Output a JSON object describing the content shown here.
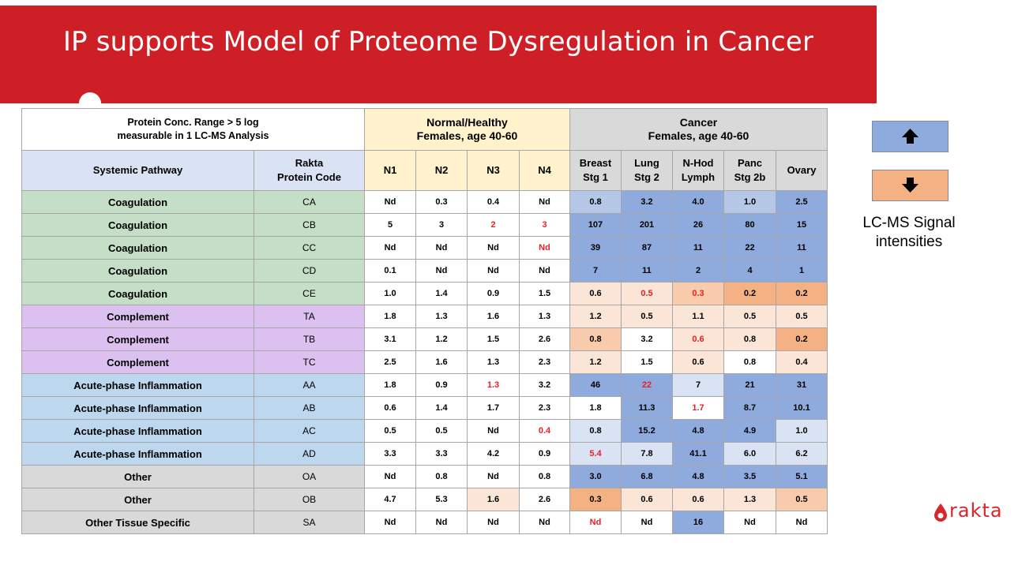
{
  "title": "IP supports Model of Proteome Dysregulation in Cancer",
  "table": {
    "note_line1": "Protein Conc. Range > 5 log",
    "note_line2": "measurable in 1 LC-MS Analysis",
    "normal_group_line1": "Normal/Healthy",
    "normal_group_line2": "Females, age 40-60",
    "cancer_group_line1": "Cancer",
    "cancer_group_line2": "Females, age 40-60",
    "col_pathway": "Systemic Pathway",
    "col_code_line1": "Rakta",
    "col_code_line2": "Protein Code",
    "normal_cols": [
      "N1",
      "N2",
      "N3",
      "N4"
    ],
    "cancer_cols": [
      {
        "l1": "Breast",
        "l2": "Stg 1"
      },
      {
        "l1": "Lung",
        "l2": "Stg 2"
      },
      {
        "l1": "N-Hod",
        "l2": "Lymph"
      },
      {
        "l1": "Panc",
        "l2": "Stg 2b"
      },
      {
        "l1": "Ovary",
        "l2": ""
      }
    ],
    "rows": [
      {
        "pathway": "Coagulation",
        "code": "CA",
        "normal": [
          "Nd",
          "0.3",
          "0.4",
          "Nd"
        ],
        "cancer": [
          "0.8",
          "3.2",
          "4.0",
          "1.0",
          "2.5"
        ]
      },
      {
        "pathway": "Coagulation",
        "code": "CB",
        "normal": [
          "5",
          "3",
          "2",
          "3"
        ],
        "cancer": [
          "107",
          "201",
          "26",
          "80",
          "15"
        ]
      },
      {
        "pathway": "Coagulation",
        "code": "CC",
        "normal": [
          "Nd",
          "Nd",
          "Nd",
          "Nd"
        ],
        "cancer": [
          "39",
          "87",
          "11",
          "22",
          "11"
        ]
      },
      {
        "pathway": "Coagulation",
        "code": "CD",
        "normal": [
          "0.1",
          "Nd",
          "Nd",
          "Nd"
        ],
        "cancer": [
          "7",
          "11",
          "2",
          "4",
          "1"
        ]
      },
      {
        "pathway": "Coagulation",
        "code": "CE",
        "normal": [
          "1.0",
          "1.4",
          "0.9",
          "1.5"
        ],
        "cancer": [
          "0.6",
          "0.5",
          "0.3",
          "0.2",
          "0.2"
        ]
      },
      {
        "pathway": "Complement",
        "code": "TA",
        "normal": [
          "1.8",
          "1.3",
          "1.6",
          "1.3"
        ],
        "cancer": [
          "1.2",
          "0.5",
          "1.1",
          "0.5",
          "0.5"
        ]
      },
      {
        "pathway": "Complement",
        "code": "TB",
        "normal": [
          "3.1",
          "1.2",
          "1.5",
          "2.6"
        ],
        "cancer": [
          "0.8",
          "3.2",
          "0.6",
          "0.8",
          "0.2"
        ]
      },
      {
        "pathway": "Complement",
        "code": "TC",
        "normal": [
          "2.5",
          "1.6",
          "1.3",
          "2.3"
        ],
        "cancer": [
          "1.2",
          "1.5",
          "0.6",
          "0.8",
          "0.4"
        ]
      },
      {
        "pathway": "Acute-phase Inflammation",
        "code": "AA",
        "normal": [
          "1.8",
          "0.9",
          "1.3",
          "3.2"
        ],
        "cancer": [
          "46",
          "22",
          "7",
          "21",
          "31"
        ]
      },
      {
        "pathway": "Acute-phase Inflammation",
        "code": "AB",
        "normal": [
          "0.6",
          "1.4",
          "1.7",
          "2.3"
        ],
        "cancer": [
          "1.8",
          "11.3",
          "1.7",
          "8.7",
          "10.1"
        ]
      },
      {
        "pathway": "Acute-phase Inflammation",
        "code": "AC",
        "normal": [
          "0.5",
          "0.5",
          "Nd",
          "0.4"
        ],
        "cancer": [
          "0.8",
          "15.2",
          "4.8",
          "4.9",
          "1.0"
        ]
      },
      {
        "pathway": "Acute-phase Inflammation",
        "code": "AD",
        "normal": [
          "3.3",
          "3.3",
          "4.2",
          "0.9"
        ],
        "cancer": [
          "5.4",
          "7.8",
          "41.1",
          "6.0",
          "6.2"
        ]
      },
      {
        "pathway": "Other",
        "code": "OA",
        "normal": [
          "Nd",
          "0.8",
          "Nd",
          "0.8"
        ],
        "cancer": [
          "3.0",
          "6.8",
          "4.8",
          "3.5",
          "5.1"
        ]
      },
      {
        "pathway": "Other",
        "code": "OB",
        "normal": [
          "4.7",
          "5.3",
          "1.6",
          "2.6"
        ],
        "cancer": [
          "0.3",
          "0.6",
          "0.6",
          "1.3",
          "0.5"
        ]
      },
      {
        "pathway": "Other Tissue Specific",
        "code": "SA",
        "normal": [
          "Nd",
          "Nd",
          "Nd",
          "Nd"
        ],
        "cancer": [
          "Nd",
          "Nd",
          "16",
          "Nd",
          "Nd"
        ]
      }
    ]
  },
  "legend": {
    "up_icon": "arrow-up-icon",
    "down_icon": "arrow-down-icon",
    "text_line1": "LC-MS Signal",
    "text_line2": "intensities"
  },
  "logo": {
    "text": "rakta",
    "icon": "blood-drop-icon"
  },
  "colors": {
    "banner_red": "#cf1f26",
    "coagulation": "#c5dfc7",
    "complement": "#dcc1f0",
    "acute_phase": "#bdd7ee",
    "other": "#d9d9d9",
    "normal_header": "#fff2cc",
    "cancer_header": "#d9d9d9",
    "column_header": "#dae3f3",
    "up_dark": "#8faadc",
    "up_mid": "#b4c7e7",
    "up_light": "#dae3f3",
    "down_dark": "#f4b183",
    "down_mid": "#f8cbad",
    "down_light": "#fbe5d6",
    "highlight_text": "#e81f26",
    "up_legend": "#8faadc",
    "down_legend": "#f4b183"
  }
}
